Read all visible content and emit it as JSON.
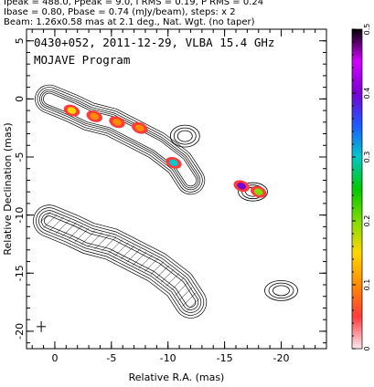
{
  "header_lines": [
    "Ipeak = 488.0, Ppeak = 9.0, I RMS = 0.19, P RMS = 0.24",
    "Ibase = 0.80, Pbase = 0.74 (mJy/beam), steps: x 2",
    "Beam: 1.26x0.58 mas at 2.1 deg., Nat. Wgt. (no taper)"
  ],
  "plot_title": "0430+052, 2011-12-29, VLBA 15.4 GHz",
  "program": "MOJAVE Program",
  "chart_data": {
    "type": "heatmap",
    "xlabel": "Relative R.A. (mas)",
    "ylabel": "Relative Declination (mas)",
    "xlim": [
      2.5,
      -24
    ],
    "ylim": [
      -21.5,
      6
    ],
    "x_ticks": [
      0,
      -5,
      -10,
      -15,
      -20
    ],
    "y_ticks": [
      5,
      0,
      -5,
      -10,
      -15,
      -20
    ],
    "colorbar": {
      "range": [
        0,
        0.5
      ],
      "ticks": [
        0,
        0.1,
        0.2,
        0.3,
        0.4,
        0.5
      ],
      "colors": [
        "#ffe8f4",
        "#ff3c3c",
        "#ff8c00",
        "#ffd700",
        "#7fdc00",
        "#00c800",
        "#00c8c8",
        "#1e5aff",
        "#7800d2",
        "#d200ff",
        "#000000"
      ]
    },
    "jet_knots_total_intensity": [
      {
        "x": 0.5,
        "y": 0.0
      },
      {
        "x": -1.5,
        "y": -0.8
      },
      {
        "x": -3.0,
        "y": -1.5
      },
      {
        "x": -5.0,
        "y": -2.0
      },
      {
        "x": -7.0,
        "y": -3.0
      },
      {
        "x": -9.0,
        "y": -4.0
      },
      {
        "x": -11.0,
        "y": -5.5
      },
      {
        "x": -12.0,
        "y": -7.0
      }
    ],
    "polarized_regions": [
      {
        "x": -1.5,
        "y": -1.0,
        "level": 0.15
      },
      {
        "x": -3.5,
        "y": -1.5,
        "level": 0.12
      },
      {
        "x": -5.5,
        "y": -2.0,
        "level": 0.1
      },
      {
        "x": -7.5,
        "y": -2.5,
        "level": 0.08
      },
      {
        "x": -10.5,
        "y": -5.5,
        "level": 0.3
      },
      {
        "x": -16.5,
        "y": -7.5,
        "level": 0.4
      },
      {
        "x": -18.0,
        "y": -8.0,
        "level": 0.2
      }
    ]
  }
}
